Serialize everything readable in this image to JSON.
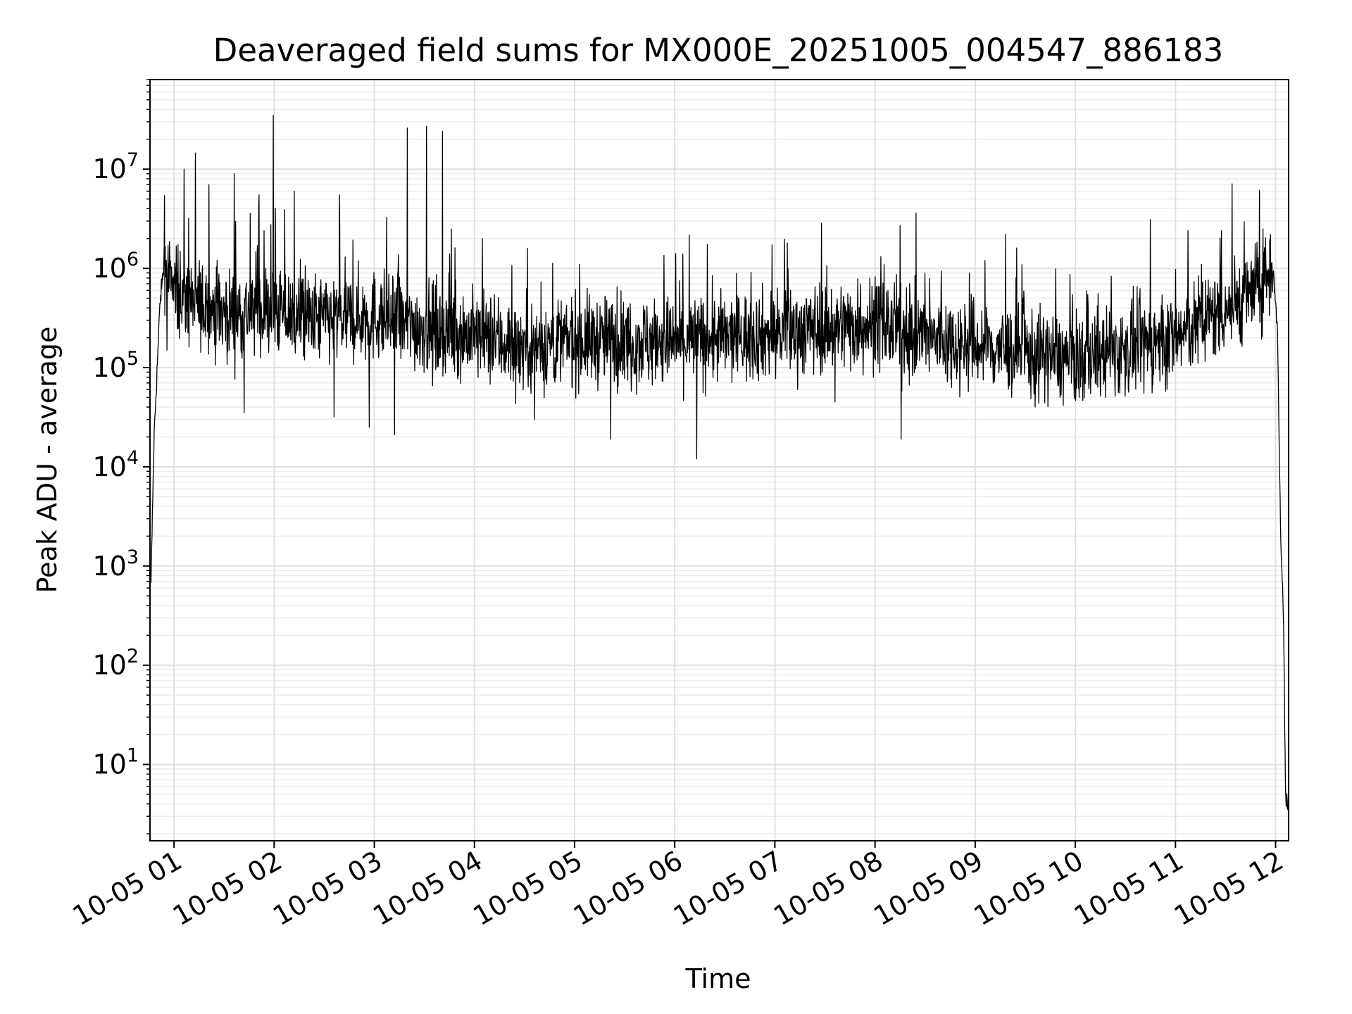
{
  "chart_data": {
    "type": "line",
    "title": "Deaveraged field sums for MX000E_20251005_004547_886183",
    "xlabel": "Time",
    "ylabel": "Peak ADU - average",
    "x_unit": "hours after 10-05 00:00",
    "xlim": [
      0.76,
      12.13
    ],
    "ylim": [
      1.7,
      80000000
    ],
    "yscale": "log",
    "grid": true,
    "x_ticks": [
      {
        "value": 1,
        "label": "10-05 01"
      },
      {
        "value": 2,
        "label": "10-05 02"
      },
      {
        "value": 3,
        "label": "10-05 03"
      },
      {
        "value": 4,
        "label": "10-05 04"
      },
      {
        "value": 5,
        "label": "10-05 05"
      },
      {
        "value": 6,
        "label": "10-05 06"
      },
      {
        "value": 7,
        "label": "10-05 07"
      },
      {
        "value": 8,
        "label": "10-05 08"
      },
      {
        "value": 9,
        "label": "10-05 09"
      },
      {
        "value": 10,
        "label": "10-05 10"
      },
      {
        "value": 11,
        "label": "10-05 11"
      },
      {
        "value": 12,
        "label": "10-05 12"
      }
    ],
    "y_ticks": [
      {
        "value": 10,
        "base": "10",
        "exp": "1"
      },
      {
        "value": 100,
        "base": "10",
        "exp": "2"
      },
      {
        "value": 1000,
        "base": "10",
        "exp": "3"
      },
      {
        "value": 10000,
        "base": "10",
        "exp": "4"
      },
      {
        "value": 100000,
        "base": "10",
        "exp": "5"
      },
      {
        "value": 1000000,
        "base": "10",
        "exp": "6"
      },
      {
        "value": 10000000,
        "base": "10",
        "exp": "7"
      }
    ],
    "series": [
      {
        "name": "deaveraged field sum",
        "color": "#000000",
        "baseline": [
          [
            0.77,
            600
          ],
          [
            0.8,
            20000
          ],
          [
            0.83,
            90000
          ],
          [
            0.86,
            450000
          ],
          [
            0.9,
            1100000
          ],
          [
            0.95,
            800000
          ],
          [
            1.1,
            500000
          ],
          [
            1.5,
            350000
          ],
          [
            2.0,
            380000
          ],
          [
            2.3,
            300000
          ],
          [
            3.0,
            330000
          ],
          [
            3.5,
            250000
          ],
          [
            4.0,
            210000
          ],
          [
            4.5,
            160000
          ],
          [
            5.0,
            190000
          ],
          [
            6.0,
            180000
          ],
          [
            7.0,
            220000
          ],
          [
            7.4,
            250000
          ],
          [
            8.0,
            280000
          ],
          [
            8.5,
            200000
          ],
          [
            9.0,
            170000
          ],
          [
            9.5,
            140000
          ],
          [
            10.0,
            120000
          ],
          [
            10.5,
            150000
          ],
          [
            11.0,
            200000
          ],
          [
            11.4,
            350000
          ],
          [
            11.8,
            600000
          ],
          [
            11.98,
            1100000
          ],
          [
            12.02,
            200000
          ],
          [
            12.05,
            2000
          ],
          [
            12.08,
            300
          ],
          [
            12.1,
            4
          ],
          [
            12.13,
            4
          ]
        ],
        "spikes": [
          [
            1.1,
            10000000
          ],
          [
            1.35,
            7000000
          ],
          [
            1.6,
            9000000
          ],
          [
            1.85,
            5500000
          ],
          [
            1.99,
            35000000
          ],
          [
            2.2,
            6000000
          ],
          [
            2.65,
            5500000
          ],
          [
            3.33,
            26000000
          ],
          [
            3.52,
            27000000
          ],
          [
            3.68,
            24000000
          ],
          [
            4.53,
            1600000
          ],
          [
            5.05,
            1100000
          ],
          [
            6.08,
            1400000
          ],
          [
            7.6,
            3100000
          ],
          [
            8.5,
            900000
          ],
          [
            9.1,
            1200000
          ],
          [
            10.75,
            3100000
          ],
          [
            11.46,
            2400000
          ],
          [
            11.95,
            2200000
          ]
        ],
        "dips": [
          [
            0.93,
            150000
          ],
          [
            1.7,
            35000
          ],
          [
            2.6,
            32000
          ],
          [
            2.95,
            25000
          ],
          [
            3.2,
            21000
          ],
          [
            4.6,
            30000
          ],
          [
            5.36,
            19000
          ],
          [
            6.22,
            12000
          ],
          [
            7.6,
            45000
          ],
          [
            8.26,
            19000
          ],
          [
            9.6,
            40000
          ]
        ]
      }
    ]
  }
}
